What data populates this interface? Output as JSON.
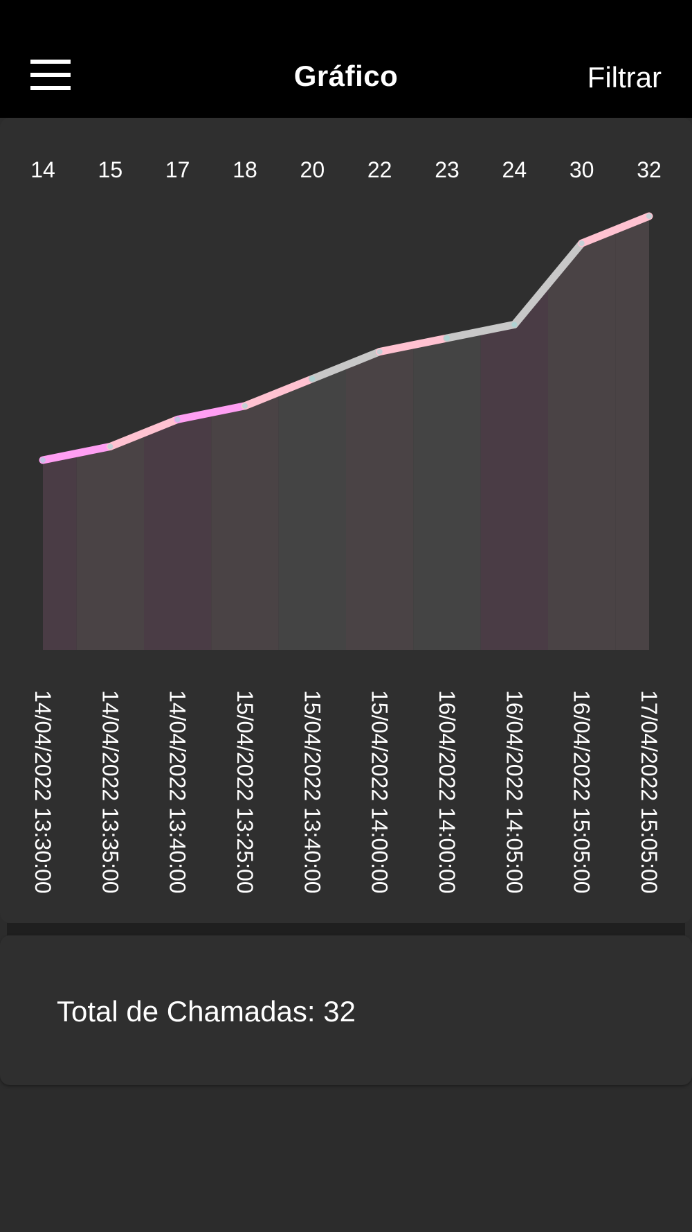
{
  "header": {
    "title": "Gráfico",
    "filter_label": "Filtrar",
    "menu_icon": "hamburger-menu-icon"
  },
  "chart_data": {
    "type": "area",
    "x": [
      "14/04/2022 13:30:00",
      "14/04/2022 13:35:00",
      "14/04/2022 13:40:00",
      "15/04/2022 13:25:00",
      "15/04/2022 13:40:00",
      "15/04/2022 14:00:00",
      "16/04/2022 14:00:00",
      "16/04/2022 14:05:00",
      "16/04/2022 15:05:00",
      "17/04/2022 15:05:00"
    ],
    "values": [
      14,
      15,
      17,
      18,
      20,
      22,
      23,
      24,
      30,
      32
    ],
    "segment_colors": [
      "#ff9ff3",
      "#ffc2d1",
      "#ff9ff3",
      "#ffc2d1",
      "#c8c8c8",
      "#ffc2d1",
      "#c8c8c8",
      "#c8c8c8",
      "#ffc2d1"
    ],
    "band_colors": [
      "#4a3c45",
      "#4a4345",
      "#4a3c45",
      "#4a4345",
      "#444444",
      "#4a4345",
      "#444444",
      "#4a3c45",
      "#4a4345",
      "#4a4345"
    ],
    "value_labels_position": "top",
    "category_labels_rotation": "vertical",
    "grid": false,
    "legend": "none"
  },
  "summary": {
    "total_label": "Total de Chamadas: 32"
  }
}
